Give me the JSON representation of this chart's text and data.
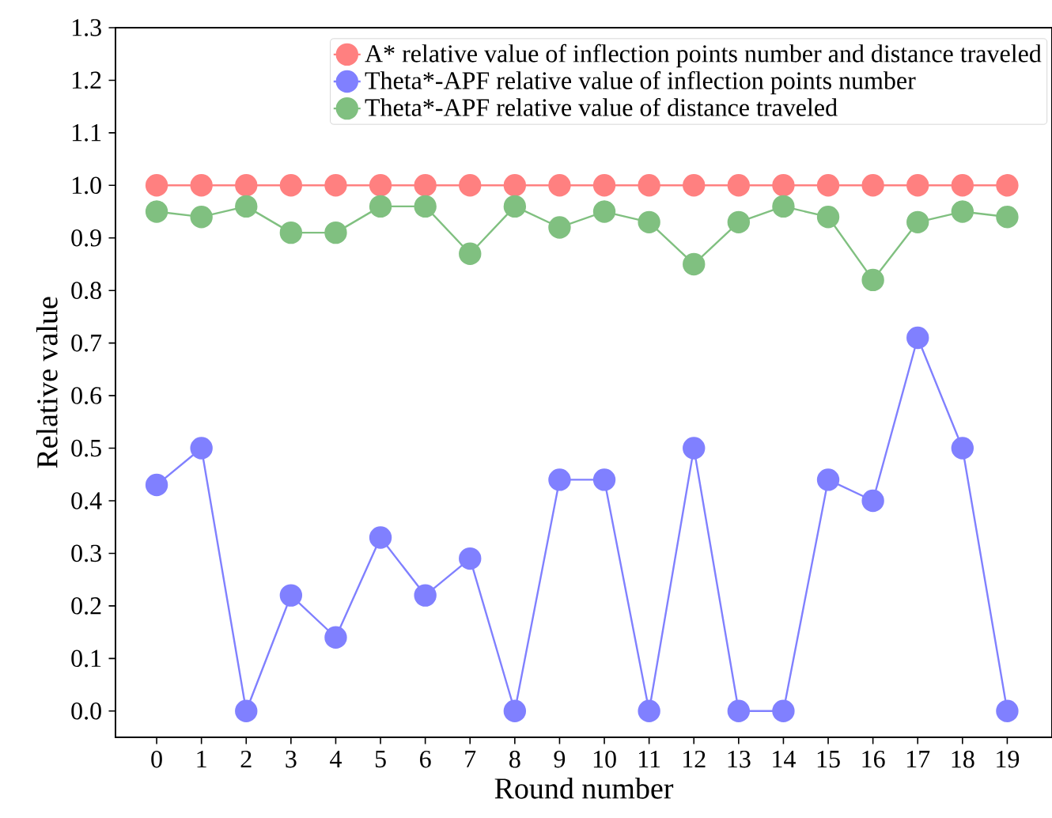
{
  "chart_data": {
    "type": "line",
    "xlabel": "Round number",
    "ylabel": "Relative value",
    "x": [
      0,
      1,
      2,
      3,
      4,
      5,
      6,
      7,
      8,
      9,
      10,
      11,
      12,
      13,
      14,
      15,
      16,
      17,
      18,
      19
    ],
    "xlim": [
      -0.92,
      20
    ],
    "xticks": [
      0,
      1,
      2,
      3,
      4,
      5,
      6,
      7,
      8,
      9,
      10,
      11,
      12,
      13,
      14,
      15,
      16,
      17,
      18,
      19
    ],
    "ylim": [
      -0.05,
      1.3
    ],
    "yticks": [
      {
        "value": 0,
        "label": "0.0"
      },
      0.1,
      0.2,
      0.3,
      0.4,
      0.5,
      0.6,
      0.7,
      0.8,
      0.9,
      {
        "value": 1,
        "label": "1.0"
      },
      1.1,
      1.2,
      1.3
    ],
    "marker": "circle",
    "line_style": "solid",
    "grid": false,
    "legend": "top right",
    "series": [
      {
        "name": "A* relative value of inflection points number and distance traveled",
        "color": "#ff8080",
        "values": [
          1,
          1,
          1,
          1,
          1,
          1,
          1,
          1,
          1,
          1,
          1,
          1,
          1,
          1,
          1,
          1,
          1,
          1,
          1,
          1
        ]
      },
      {
        "name": "Theta*-APF relative value of inflection points number",
        "color": "#8080ff",
        "values": [
          0.43,
          0.5,
          0,
          0.22,
          0.14,
          0.33,
          0.22,
          0.29,
          0,
          0.44,
          0.44,
          0,
          0.5,
          0,
          0,
          0.44,
          0.4,
          0.71,
          0.5,
          0
        ]
      },
      {
        "name": "Theta*-APF relative value of distance traveled",
        "color": "#80c080",
        "values": [
          0.95,
          0.94,
          0.96,
          0.91,
          0.91,
          0.96,
          0.96,
          0.87,
          0.96,
          0.92,
          0.95,
          0.93,
          0.85,
          0.93,
          0.96,
          0.94,
          0.82,
          0.93,
          0.95,
          0.94
        ]
      }
    ]
  }
}
